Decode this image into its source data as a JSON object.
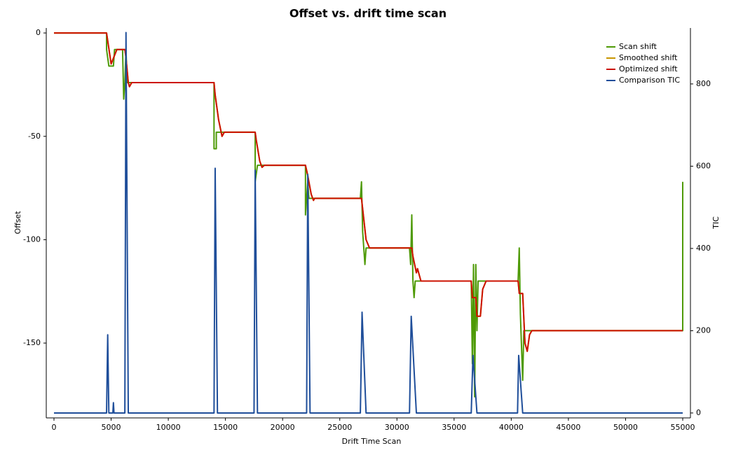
{
  "chart_data": {
    "type": "line",
    "title": "Offset vs. drift time scan",
    "x_label": "Drift Time Scan",
    "y_label": "Offset",
    "y2_label": "TIC",
    "xlim": [
      -675,
      55675
    ],
    "xticks": [
      0,
      5000,
      10000,
      15000,
      20000,
      25000,
      30000,
      35000,
      40000,
      45000,
      50000,
      55000
    ],
    "ylim": [
      -186.2,
      2.4
    ],
    "yticks": [
      0,
      -50,
      -100,
      -150
    ],
    "y2lim": [
      -12,
      936
    ],
    "y2ticks": [
      0,
      200,
      400,
      600,
      800
    ],
    "legend": "top-right",
    "series": [
      {
        "name": "Scan shift",
        "color": "#4e9a06",
        "x": [
          0,
          4600,
          4600,
          4800,
          5200,
          5300,
          6000,
          6100,
          6200,
          6300,
          6400,
          14000,
          14000,
          14200,
          14200,
          17600,
          17600,
          17800,
          22000,
          22000,
          22200,
          22300,
          26800,
          26900,
          27000,
          27200,
          27300,
          31100,
          31200,
          31300,
          31400,
          31500,
          31600,
          36500,
          36600,
          36700,
          36800,
          36900,
          37000,
          37100,
          40600,
          40700,
          40800,
          41000,
          41100,
          55000,
          55000
        ],
        "values": [
          0,
          0,
          -8,
          -16,
          -16,
          -8,
          -8,
          -32,
          -24,
          -8,
          -24,
          -24,
          -56,
          -56,
          -48,
          -48,
          -72,
          -64,
          -64,
          -88,
          -72,
          -80,
          -80,
          -72,
          -96,
          -112,
          -104,
          -104,
          -112,
          -88,
          -120,
          -128,
          -120,
          -120,
          -160,
          -112,
          -176,
          -112,
          -144,
          -120,
          -120,
          -104,
          -136,
          -168,
          -144,
          -144,
          -72
        ]
      },
      {
        "name": "Smoothed shift",
        "color": "#c89600",
        "x": [
          0,
          4600,
          5000,
          5500,
          6200,
          6300,
          6500,
          6600,
          6800,
          14000,
          14100,
          14400,
          14700,
          14900,
          17600,
          17700,
          18000,
          18200,
          18400,
          22000,
          22200,
          22500,
          22700,
          22800,
          26900,
          27000,
          27300,
          27600,
          31300,
          31400,
          31700,
          31800,
          32100,
          36500,
          36600,
          36900,
          37000,
          37300,
          37500,
          37800,
          40600,
          40700,
          41000,
          41200,
          41400,
          41600,
          41800,
          55000
        ],
        "values": [
          0,
          0,
          -15,
          -8,
          -8,
          -12,
          -24,
          -26,
          -24,
          -24,
          -30,
          -42,
          -50,
          -48,
          -48,
          -52,
          -62,
          -65,
          -64,
          -64,
          -69,
          -78,
          -81,
          -80,
          -80,
          -85,
          -100,
          -104,
          -104,
          -108,
          -116,
          -114,
          -120,
          -120,
          -128,
          -128,
          -137,
          -137,
          -124,
          -120,
          -120,
          -126,
          -126,
          -150,
          -154,
          -146,
          -144,
          -144
        ]
      },
      {
        "name": "Optimized shift",
        "color": "#cc1100",
        "x": [
          0,
          4600,
          5000,
          5500,
          6200,
          6300,
          6500,
          6600,
          6800,
          14000,
          14100,
          14400,
          14700,
          14900,
          17600,
          17700,
          18000,
          18200,
          18400,
          22000,
          22200,
          22500,
          22700,
          22800,
          26900,
          27000,
          27300,
          27600,
          31300,
          31400,
          31700,
          31800,
          32100,
          36500,
          36600,
          36900,
          37000,
          37300,
          37500,
          37800,
          40600,
          40700,
          41000,
          41200,
          41400,
          41600,
          41800,
          55000
        ],
        "values": [
          0,
          0,
          -15,
          -8,
          -8,
          -12,
          -24,
          -26,
          -24,
          -24,
          -30,
          -42,
          -50,
          -48,
          -48,
          -52,
          -62,
          -65,
          -64,
          -64,
          -69,
          -78,
          -81,
          -80,
          -80,
          -85,
          -100,
          -104,
          -104,
          -108,
          -116,
          -114,
          -120,
          -120,
          -128,
          -128,
          -137,
          -137,
          -124,
          -120,
          -120,
          -126,
          -126,
          -150,
          -154,
          -146,
          -144,
          -144
        ]
      },
      {
        "name": "Comparison TIC",
        "color": "#1f4e9a",
        "axis": "y2",
        "x": [
          0,
          4600,
          4700,
          4800,
          5150,
          5200,
          5250,
          6200,
          6300,
          6500,
          14000,
          14100,
          14300,
          17500,
          17600,
          17800,
          22100,
          22200,
          22400,
          26800,
          26950,
          27300,
          31100,
          31250,
          31700,
          36500,
          36650,
          36800,
          37000,
          40550,
          40650,
          40800,
          41000,
          55000
        ],
        "values": [
          0,
          0,
          190,
          0,
          0,
          25,
          0,
          0,
          925,
          0,
          0,
          595,
          0,
          0,
          590,
          0,
          0,
          580,
          0,
          0,
          245,
          0,
          0,
          235,
          0,
          0,
          140,
          80,
          0,
          0,
          140,
          80,
          0,
          0
        ]
      }
    ]
  }
}
